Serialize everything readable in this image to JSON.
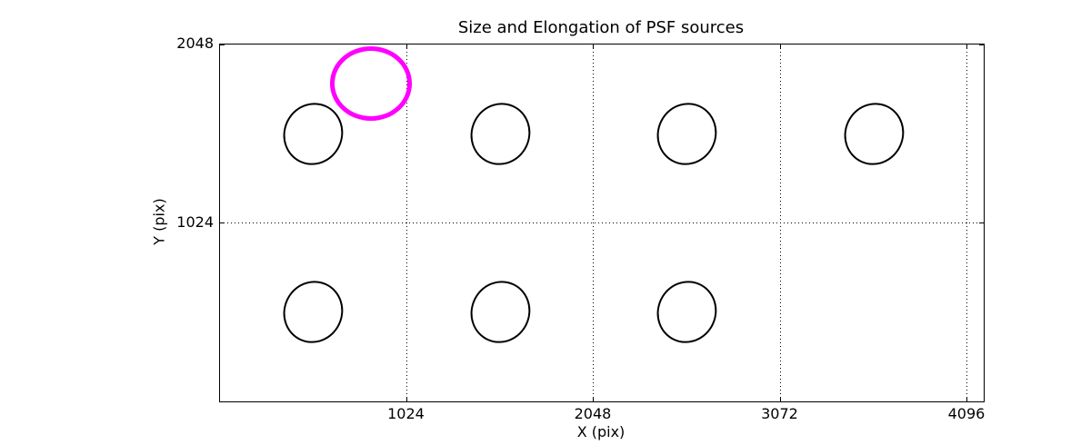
{
  "figure": {
    "background": "#ffffff"
  },
  "chart_data": {
    "type": "scatter",
    "subtype": "ellipse-map",
    "title": "Size and Elongation of PSF sources",
    "xlabel": "X (pix)",
    "ylabel": "Y (pix)",
    "xlim": [
      0,
      4186
    ],
    "ylim": [
      0,
      2048
    ],
    "xticks": [
      1024,
      2048,
      3072,
      4096
    ],
    "yticks": [
      1024,
      2048
    ],
    "grid": {
      "style": "dotted",
      "color": "#000000",
      "on": true
    },
    "legend": "none",
    "colors": {
      "psf_source": "#000000",
      "flagged_source": "#ff00ff"
    },
    "ellipses": [
      {
        "x": 512,
        "y": 1536,
        "semi_x": 155,
        "semi_y": 172,
        "angle_deg": 25,
        "color": "#000000",
        "line_width": 2.8,
        "role": "psf-source"
      },
      {
        "x": 1536,
        "y": 1536,
        "semi_x": 155,
        "semi_y": 172,
        "angle_deg": 25,
        "color": "#000000",
        "line_width": 2.8,
        "role": "psf-source"
      },
      {
        "x": 2560,
        "y": 1536,
        "semi_x": 155,
        "semi_y": 172,
        "angle_deg": 25,
        "color": "#000000",
        "line_width": 2.8,
        "role": "psf-source"
      },
      {
        "x": 3584,
        "y": 1536,
        "semi_x": 155,
        "semi_y": 172,
        "angle_deg": 25,
        "color": "#000000",
        "line_width": 2.8,
        "role": "psf-source"
      },
      {
        "x": 512,
        "y": 512,
        "semi_x": 155,
        "semi_y": 172,
        "angle_deg": 25,
        "color": "#000000",
        "line_width": 2.8,
        "role": "psf-source"
      },
      {
        "x": 1536,
        "y": 512,
        "semi_x": 155,
        "semi_y": 172,
        "angle_deg": 25,
        "color": "#000000",
        "line_width": 2.8,
        "role": "psf-source"
      },
      {
        "x": 2560,
        "y": 512,
        "semi_x": 155,
        "semi_y": 172,
        "angle_deg": 25,
        "color": "#000000",
        "line_width": 2.8,
        "role": "psf-source"
      },
      {
        "x": 825,
        "y": 1822,
        "semi_x": 212,
        "semi_y": 200,
        "angle_deg": 0,
        "color": "#ff00ff",
        "line_width": 5,
        "role": "flagged-source"
      }
    ]
  }
}
